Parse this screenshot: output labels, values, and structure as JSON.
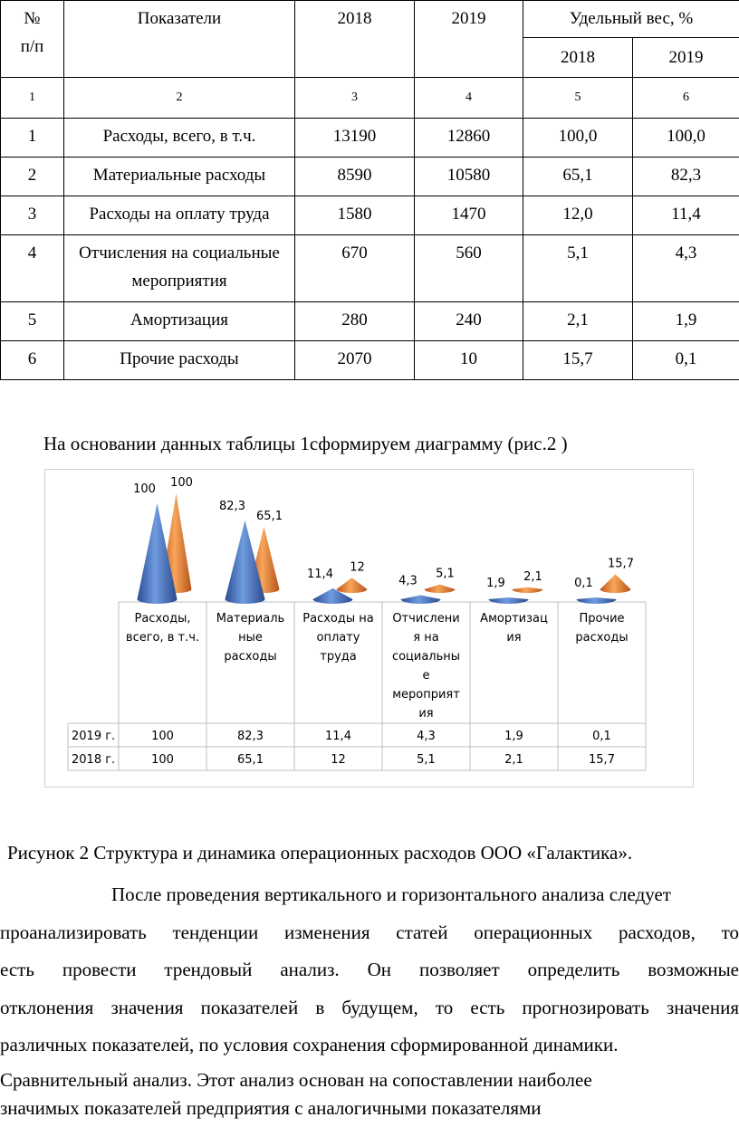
{
  "table": {
    "h_num": "№\nп/п",
    "h_ind": "Показатели",
    "h_2018": "2018",
    "h_2019": "2019",
    "h_share": "Удельный вес, %",
    "h_share_2018": "2018",
    "h_share_2019": "2019",
    "col_numbers": [
      "1",
      "2",
      "3",
      "4",
      "5",
      "6"
    ],
    "rows": [
      [
        "1",
        "Расходы, всего, в т.ч.",
        "13190",
        "12860",
        "100,0",
        "100,0"
      ],
      [
        "2",
        "Материальные расходы",
        "8590",
        "10580",
        "65,1",
        "82,3"
      ],
      [
        "3",
        "Расходы на оплату труда",
        "1580",
        "1470",
        "12,0",
        "11,4"
      ],
      [
        "4",
        "Отчисления на социальные мероприятия",
        "670",
        "560",
        "5,1",
        "4,3"
      ],
      [
        "5",
        "Амортизация",
        "280",
        "240",
        "2,1",
        "1,9"
      ],
      [
        "6",
        "Прочие расходы",
        "2070",
        "10",
        "15,7",
        "0,1"
      ]
    ]
  },
  "intro_text": "На основании данных таблицы 1сформируем диаграмму (рис.2 )",
  "chart_data": {
    "type": "bar",
    "categories": [
      "Расходы, всего, в т.ч.",
      "Материальные расходы",
      "Расходы на оплату труда",
      "Отчисления на социальные мероприятия",
      "Амортизация",
      "Прочие расходы"
    ],
    "category_lines": [
      [
        "Расходы,",
        "всего, в т.ч."
      ],
      [
        "Материаль",
        "ные",
        "расходы"
      ],
      [
        "Расходы на",
        "оплату",
        "труда"
      ],
      [
        "Отчислени",
        "я на",
        "социальны",
        "е",
        "мероприят",
        "ия"
      ],
      [
        "Амортизац",
        "ия"
      ],
      [
        "Прочие",
        "расходы"
      ]
    ],
    "series": [
      {
        "name": "2019 г.",
        "values": [
          100,
          82.3,
          11.4,
          4.3,
          1.9,
          0.1
        ],
        "labels": [
          "100",
          "82,3",
          "11,4",
          "4,3",
          "1,9",
          "0,1"
        ],
        "color": "#4472c4"
      },
      {
        "name": "2018 г.",
        "values": [
          100,
          65.1,
          12,
          5.1,
          2.1,
          15.7
        ],
        "labels": [
          "100",
          "65,1",
          "12",
          "5,1",
          "2,1",
          "15,7"
        ],
        "color": "#ed7d31"
      }
    ],
    "ylim": [
      0,
      100
    ],
    "shape": "cone",
    "data_table": true
  },
  "caption": "Рисунок 2 Структура и динамика операционных расходов ООО «Галактика».",
  "paragraph_lines": [
    "После проведения вертикального и горизонтального анализа следует",
    "проанализировать тенденции изменения статей операционных расходов, то",
    "есть провести трендовый анализ. Он позволяет определить возможные",
    "отклонения значения показателей в будущем, то есть прогнозировать значения",
    "различных показателей, по условия сохранения сформированной динамики."
  ],
  "paragraph2_lines": [
    "Сравнительный анализ. Этот анализ основан на сопоставлении наиболее",
    "значимых показателей предприятия с аналогичными показателями"
  ]
}
